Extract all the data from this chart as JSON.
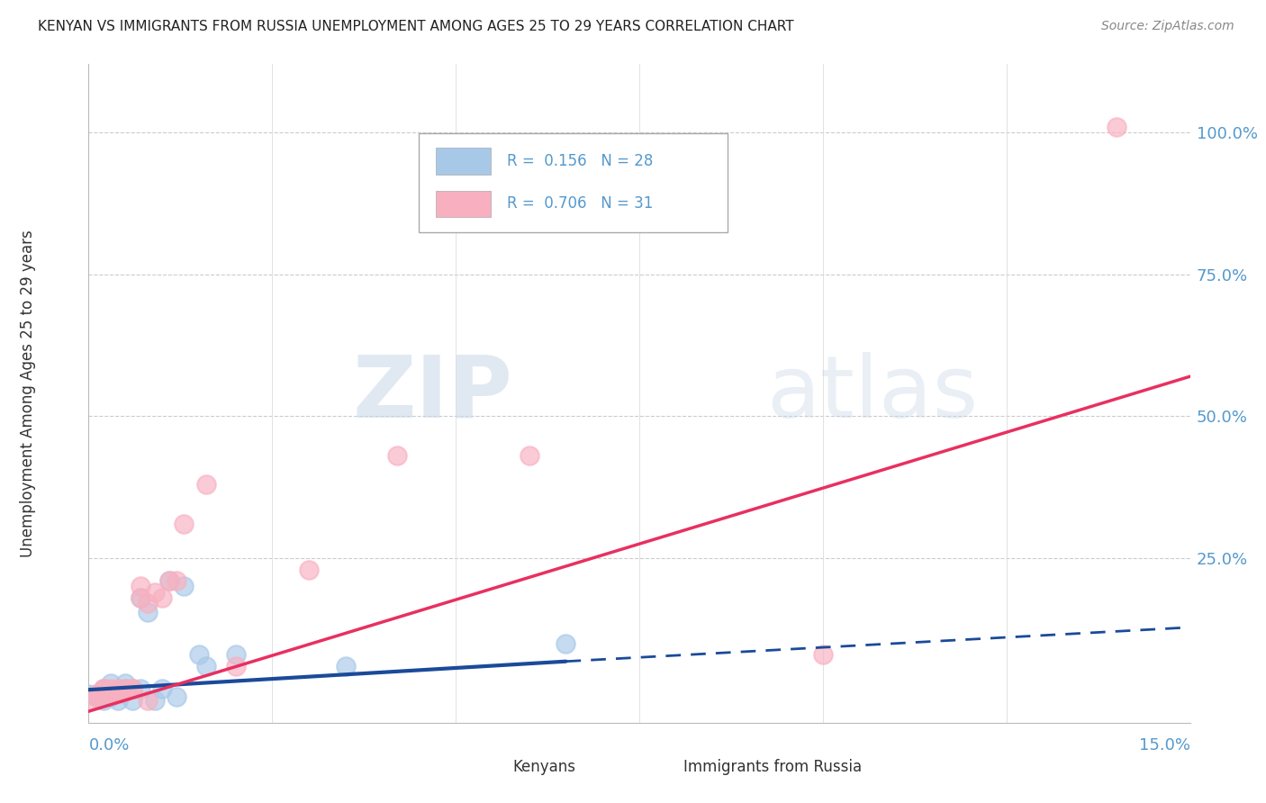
{
  "title": "KENYAN VS IMMIGRANTS FROM RUSSIA UNEMPLOYMENT AMONG AGES 25 TO 29 YEARS CORRELATION CHART",
  "source": "Source: ZipAtlas.com",
  "ylabel": "Unemployment Among Ages 25 to 29 years",
  "ytick_labels": [
    "100.0%",
    "75.0%",
    "50.0%",
    "25.0%"
  ],
  "ytick_values": [
    1.0,
    0.75,
    0.5,
    0.25
  ],
  "xlim": [
    0.0,
    0.15
  ],
  "ylim": [
    -0.04,
    1.12
  ],
  "watermark_zip": "ZIP",
  "watermark_atlas": "atlas",
  "kenyan_color": "#a8c8e8",
  "russia_color": "#f8b0c0",
  "kenyan_line_color": "#1a4a9a",
  "russia_line_color": "#e83060",
  "background_color": "#ffffff",
  "grid_color": "#cccccc",
  "kenyan_x": [
    0.0,
    0.001,
    0.001,
    0.002,
    0.002,
    0.002,
    0.003,
    0.003,
    0.003,
    0.004,
    0.004,
    0.005,
    0.005,
    0.006,
    0.006,
    0.007,
    0.007,
    0.008,
    0.009,
    0.01,
    0.011,
    0.012,
    0.013,
    0.015,
    0.016,
    0.02,
    0.035,
    0.065
  ],
  "kenyan_y": [
    0.01,
    0.005,
    0.01,
    0.0,
    0.01,
    0.02,
    0.005,
    0.01,
    0.03,
    0.0,
    0.015,
    0.02,
    0.03,
    0.0,
    0.02,
    0.18,
    0.02,
    0.155,
    0.0,
    0.02,
    0.21,
    0.005,
    0.2,
    0.08,
    0.06,
    0.08,
    0.06,
    0.1
  ],
  "russia_x": [
    0.0,
    0.001,
    0.001,
    0.002,
    0.002,
    0.002,
    0.003,
    0.003,
    0.003,
    0.004,
    0.004,
    0.005,
    0.005,
    0.006,
    0.006,
    0.007,
    0.007,
    0.008,
    0.008,
    0.009,
    0.01,
    0.011,
    0.012,
    0.013,
    0.016,
    0.02,
    0.03,
    0.042,
    0.06,
    0.1,
    0.14
  ],
  "russia_y": [
    0.0,
    0.005,
    0.01,
    0.01,
    0.02,
    0.02,
    0.01,
    0.015,
    0.02,
    0.01,
    0.02,
    0.015,
    0.02,
    0.02,
    0.02,
    0.18,
    0.2,
    0.0,
    0.17,
    0.19,
    0.18,
    0.21,
    0.21,
    0.31,
    0.38,
    0.06,
    0.23,
    0.43,
    0.43,
    0.08,
    1.01
  ],
  "ken_line_x0": 0.0,
  "ken_line_x1": 0.065,
  "ken_line_x2": 0.15,
  "ken_line_y0": 0.018,
  "ken_line_y1": 0.068,
  "ken_line_y2": 0.128,
  "rus_line_x0": 0.0,
  "rus_line_x1": 0.15,
  "rus_line_y0": -0.02,
  "rus_line_y1": 0.57
}
